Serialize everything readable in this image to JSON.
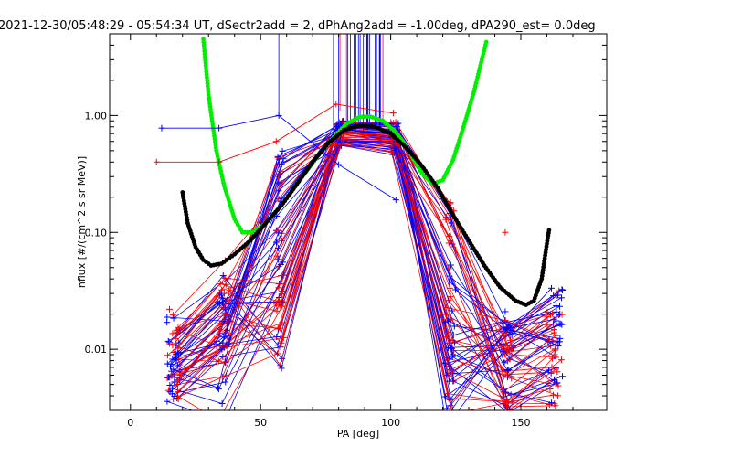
{
  "chart_data": {
    "type": "scatter",
    "title": "2021-12-30/05:48:29 - 05:54:34 UT, dSectr2add = 2, dPhAng2add = -1.00deg, dPA290_est=   0.0deg",
    "xlabel": "PA [deg]",
    "ylabel": "nflux [#/(cm^2 s sr MeV)]",
    "xlim": [
      -8,
      183
    ],
    "ylim": [
      0.003,
      5
    ],
    "yscale": "log",
    "x_ticks": [
      0,
      50,
      100,
      150
    ],
    "x_tick_labels": [
      "0",
      "50",
      "100",
      "150"
    ],
    "y_ticks": [
      0.01,
      0.1,
      1.0
    ],
    "y_tick_labels": [
      "0.01",
      "0.10",
      "1.00"
    ],
    "grid": false,
    "colors": {
      "red": "#ff0000",
      "blue": "#0000ff",
      "green": "#00ee00",
      "black": "#000000"
    },
    "series": [
      {
        "kind": "model-curve",
        "color": "#00ee00",
        "points": [
          [
            28,
            4.5
          ],
          [
            30,
            1.5
          ],
          [
            33,
            0.5
          ],
          [
            36,
            0.25
          ],
          [
            40,
            0.13
          ],
          [
            43,
            0.1
          ],
          [
            47,
            0.1
          ],
          [
            52,
            0.12
          ],
          [
            58,
            0.17
          ],
          [
            65,
            0.28
          ],
          [
            72,
            0.45
          ],
          [
            78,
            0.65
          ],
          [
            83,
            0.85
          ],
          [
            88,
            0.97
          ],
          [
            92,
            0.98
          ],
          [
            97,
            0.9
          ],
          [
            102,
            0.72
          ],
          [
            107,
            0.5
          ],
          [
            112,
            0.32
          ],
          [
            116,
            0.26
          ],
          [
            120,
            0.28
          ],
          [
            124,
            0.42
          ],
          [
            128,
            0.8
          ],
          [
            132,
            1.6
          ],
          [
            135,
            3.0
          ],
          [
            137,
            4.5
          ]
        ]
      },
      {
        "kind": "model-curve",
        "color": "#000000",
        "points": [
          [
            20,
            0.22
          ],
          [
            22,
            0.12
          ],
          [
            25,
            0.075
          ],
          [
            28,
            0.058
          ],
          [
            31,
            0.052
          ],
          [
            35,
            0.054
          ],
          [
            40,
            0.065
          ],
          [
            46,
            0.085
          ],
          [
            52,
            0.12
          ],
          [
            58,
            0.17
          ],
          [
            64,
            0.26
          ],
          [
            70,
            0.4
          ],
          [
            76,
            0.58
          ],
          [
            82,
            0.75
          ],
          [
            88,
            0.82
          ],
          [
            94,
            0.8
          ],
          [
            100,
            0.7
          ],
          [
            106,
            0.53
          ],
          [
            112,
            0.37
          ],
          [
            118,
            0.24
          ],
          [
            124,
            0.14
          ],
          [
            130,
            0.085
          ],
          [
            136,
            0.052
          ],
          [
            142,
            0.034
          ],
          [
            148,
            0.026
          ],
          [
            152,
            0.024
          ],
          [
            155,
            0.026
          ],
          [
            158,
            0.04
          ],
          [
            160,
            0.08
          ],
          [
            161,
            0.11
          ]
        ]
      },
      {
        "kind": "blue-trace",
        "color": "#0000ff",
        "points": [
          [
            12,
            0.78
          ],
          [
            34,
            0.78
          ],
          [
            57,
            1.0
          ],
          [
            80,
            0.38
          ],
          [
            102,
            0.19
          ]
        ]
      },
      {
        "kind": "red-trace",
        "color": "#ff0000",
        "points": [
          [
            10,
            0.4
          ],
          [
            34,
            0.4
          ],
          [
            56,
            0.6
          ],
          [
            79,
            1.25
          ],
          [
            101,
            1.05
          ]
        ]
      },
      {
        "kind": "red-markers",
        "color": "#ff0000",
        "points": [
          [
            144,
            0.1
          ],
          [
            123,
            0.18
          ],
          [
            15,
            0.022
          ],
          [
            36,
            0.03
          ],
          [
            57,
            0.026
          ],
          [
            122,
            0.014
          ],
          [
            161,
            0.012
          ],
          [
            163,
            0.009
          ]
        ]
      },
      {
        "kind": "blue-markers",
        "color": "#0000ff",
        "points": [
          [
            166,
            0.032
          ],
          [
            165,
            0.02
          ],
          [
            144,
            0.021
          ],
          [
            121,
            0.017
          ],
          [
            14,
            0.017
          ],
          [
            35,
            0.029
          ]
        ]
      }
    ]
  }
}
